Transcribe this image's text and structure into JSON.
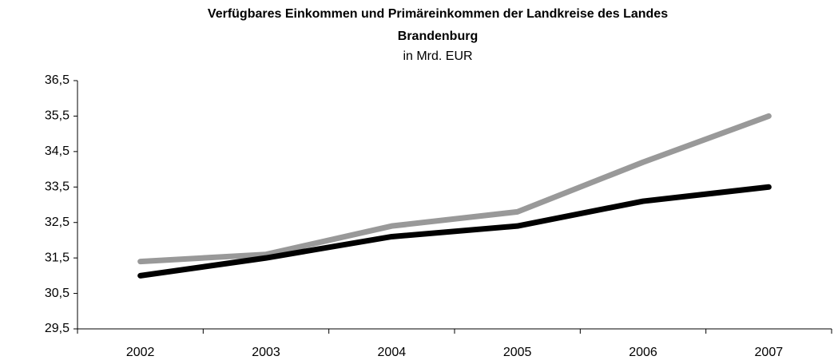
{
  "chart_data": {
    "type": "line",
    "title": "Verfügbares Einkommen und Primäreinkommen der Landkreise des Landes Brandenburg",
    "subtitle": "in Mrd. EUR",
    "categories": [
      "2002",
      "2003",
      "2004",
      "2005",
      "2006",
      "2007"
    ],
    "series": [
      {
        "color": "#999999",
        "values": [
          31.4,
          31.6,
          32.4,
          32.8,
          34.2,
          35.5
        ]
      },
      {
        "color": "#000000",
        "values": [
          31.0,
          31.5,
          32.1,
          32.4,
          33.1,
          33.5
        ]
      }
    ],
    "ylim": [
      29.5,
      36.5
    ],
    "yticks": [
      {
        "value": 29.5,
        "label": "29,5"
      },
      {
        "value": 30.5,
        "label": "30,5"
      },
      {
        "value": 31.5,
        "label": "31,5"
      },
      {
        "value": 32.5,
        "label": "32,5"
      },
      {
        "value": 33.5,
        "label": "33,5"
      },
      {
        "value": 34.5,
        "label": "34,5"
      },
      {
        "value": 35.5,
        "label": "35,5"
      },
      {
        "value": 36.5,
        "label": "36,5"
      }
    ],
    "grid": false
  }
}
